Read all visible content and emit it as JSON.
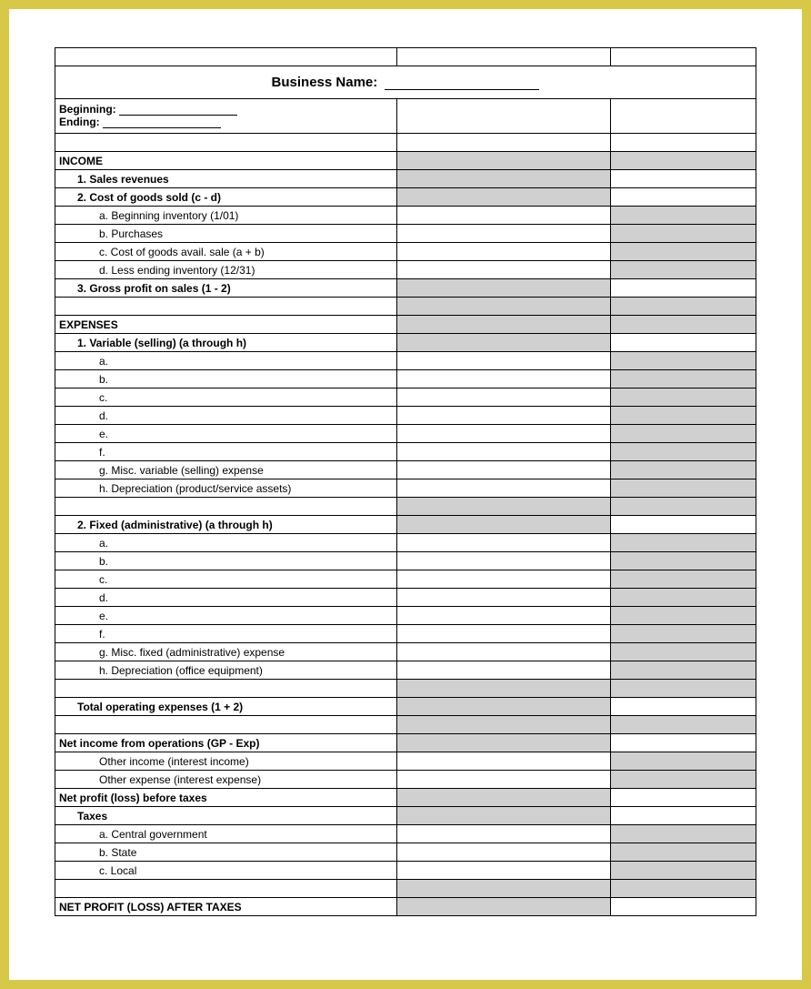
{
  "header": {
    "business_name_label": "Business Name:",
    "beginning_label": "Beginning:",
    "ending_label": "Ending:"
  },
  "sections": {
    "income": {
      "title": "INCOME",
      "row1": "1. Sales revenues",
      "row2": "2. Cost of goods sold (c - d)",
      "row2a": "a. Beginning inventory (1/01)",
      "row2b": "b. Purchases",
      "row2c": "c. Cost of goods avail. sale (a + b)",
      "row2d": "d. Less ending inventory (12/31)",
      "row3": "3. Gross profit on sales (1 - 2)"
    },
    "expenses": {
      "title": "EXPENSES",
      "variable": {
        "title": "1. Variable (selling) (a through h)",
        "a": "a.",
        "b": "b.",
        "c": "c.",
        "d": "d.",
        "e": "e.",
        "f": "f.",
        "g": "g. Misc. variable (selling) expense",
        "h": "h. Depreciation (product/service assets)"
      },
      "fixed": {
        "title": "2. Fixed (administrative) (a through h)",
        "a": "a.",
        "b": "b.",
        "c": "c.",
        "d": "d.",
        "e": "e.",
        "f": "f.",
        "g": "g. Misc. fixed (administrative) expense",
        "h": "h. Depreciation (office equipment)"
      },
      "total": "Total operating expenses (1 + 2)"
    },
    "net_income_ops": "Net income from operations (GP - Exp)",
    "other_income": "Other income (interest income)",
    "other_expense": "Other expense (interest expense)",
    "net_before_taxes": "Net profit (loss) before taxes",
    "taxes": {
      "title": "Taxes",
      "a": "a. Central government",
      "b": "b. State",
      "c": "c. Local"
    },
    "net_after_taxes": "NET PROFIT (LOSS) AFTER TAXES"
  },
  "styling": {
    "border_color": "#000000",
    "shaded_bg": "#d0d0d0",
    "page_bg": "#ffffff",
    "outer_bg": "#d8c848",
    "col_a_width": "auto",
    "col_b_width": 235,
    "col_c_width": 160
  }
}
